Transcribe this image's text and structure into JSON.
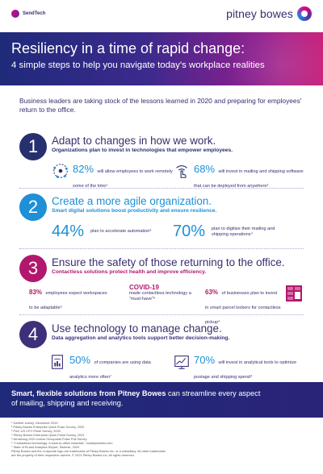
{
  "header": {
    "sendtech_label": "SendTech",
    "brand_name": "pitney bowes"
  },
  "hero": {
    "title": "Resiliency in a time of rapid change:",
    "subtitle": "4 simple steps to help you navigate today's workplace realities"
  },
  "intro": "Business leaders are taking stock of the lessons learned in 2020 and preparing for employees' return to the office.",
  "steps": [
    {
      "number": "1",
      "title": "Adapt to changes in how we work.",
      "subtitle": "Organizations plan to invest in technologies that empower employees.",
      "stats": [
        {
          "value": "82%",
          "text": "will allow employees to work remotely some of the time¹",
          "icon": "remote-network-icon"
        },
        {
          "value": "68%",
          "text": "will invest in mailing and shipping software that can be deployed from anywhere²",
          "icon": "touch-wifi-icon"
        }
      ]
    },
    {
      "number": "2",
      "title": "Create a more agile organization.",
      "subtitle": "Smart digital solutions boost productivity and ensure resilience.",
      "stats": [
        {
          "value": "44%",
          "text": "plan to accelerate automation³"
        },
        {
          "value": "70%",
          "text": "plan to digitize their mailing and shipping operations⁴"
        }
      ]
    },
    {
      "number": "3",
      "title": "Ensure the safety of those returning to the office.",
      "subtitle": "Contactless solutions protect health and improve efficiency.",
      "stats": [
        {
          "value": "83%",
          "text": "employees expect workspaces to be adaptable⁵"
        },
        {
          "value": "COVID-19",
          "text": "made contactless technology a “must-have”⁶"
        },
        {
          "value": "63%",
          "text": "of businesses plan to invest in smart parcel lockers for contactless pickup⁴",
          "icon": "parcel-locker-icon"
        }
      ]
    },
    {
      "number": "4",
      "title": "Use technology to manage change.",
      "subtitle": "Data aggregation and analytics tools support better decision-making.",
      "stats": [
        {
          "value": "50%",
          "text": "of companies are using data analytics more often⁷",
          "icon": "analytics-document-icon"
        },
        {
          "value": "70%",
          "text": "will invest in analytical tools to optimize postage and shipping spend⁴",
          "icon": "analytics-chart-icon"
        }
      ]
    }
  ],
  "footer": {
    "bold_lead": "Smart, flexible solutions from Pitney Bowes",
    "rest_line1": " can streamline every aspect",
    "line2": "of mailing, shipping and receiving."
  },
  "notes": [
    "¹ Gartner survey, December 2020",
    "² Pitney Bowes Enterprise Quick Pulse Survey, 2020",
    "³ PwC US CFO Pulse Survey, 2020",
    "⁴ Pitney Bowes Enterprise Quick Pulse Survey, 2021",
    "⁵ Armstrong 2021 Indoor Occupants Pulse Poll Survey",
    "⁶ “Contactless technology: A back-to-office essential,” insidepwwebs.com",
    "⁷ State of BI and Analytics Report, Sisense, 2020",
    "Pitney Bowes and the Corporate logo are trademarks of Pitney Bowes Inc. or a subsidiary. All other trademarks",
    "are the property of their respective owners. © 2021 Pitney Bowes Inc. All rights reserved."
  ],
  "colors": {
    "navy": "#27306e",
    "blue": "#1f8fd6",
    "magenta": "#b2176e",
    "purple": "#3e2f7a"
  }
}
